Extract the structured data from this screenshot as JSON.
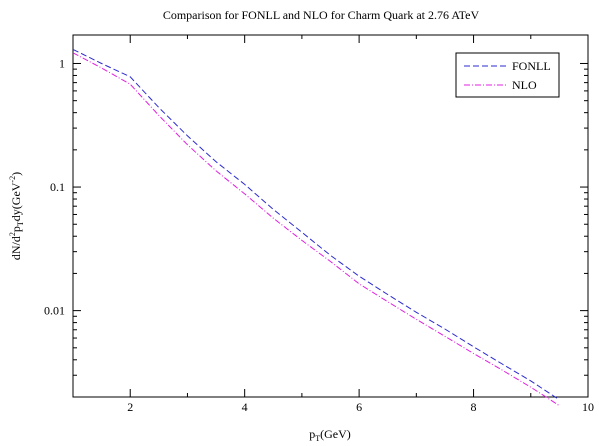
{
  "chart_data": {
    "type": "line",
    "title": "Comparison for FONLL and NLO for Charm Quark at 2.76 ATeV",
    "xlabel": {
      "main": "p",
      "sub": "T",
      "rest": "(GeV)"
    },
    "ylabel": {
      "main": "dN/d",
      "sup1": "2",
      "mid1": "p",
      "sub1": "T",
      "mid2": "dy(GeV",
      "sup2": "-2",
      "end": ")"
    },
    "xlim": [
      1,
      10
    ],
    "ylim": [
      0.002,
      1.7
    ],
    "yscale": "log",
    "xticks": [
      2,
      4,
      6,
      8,
      10
    ],
    "xtick_labels": [
      "2",
      "4",
      "6",
      "8",
      "10"
    ],
    "yticks": [
      0.01,
      0.1,
      1
    ],
    "ytick_labels": [
      "0.01",
      "0.1",
      "1"
    ],
    "grid": false,
    "legend": "top-right",
    "series": [
      {
        "name": "FONLL",
        "color": "#2b2bd0",
        "dash": "dashed",
        "x": [
          1.0,
          1.5,
          2.0,
          2.5,
          3.0,
          3.5,
          4.0,
          4.5,
          5.0,
          5.5,
          6.0,
          6.5,
          7.0,
          7.5,
          8.0,
          8.5,
          9.0,
          9.5
        ],
        "y": [
          1.3,
          1.0,
          0.78,
          0.44,
          0.26,
          0.16,
          0.105,
          0.066,
          0.043,
          0.028,
          0.019,
          0.0135,
          0.0097,
          0.0071,
          0.0051,
          0.0037,
          0.0027,
          0.0019
        ]
      },
      {
        "name": "NLO",
        "color": "#e020e0",
        "dash": "dash-dot",
        "x": [
          1.0,
          1.5,
          2.0,
          2.5,
          3.0,
          3.5,
          4.0,
          4.5,
          5.0,
          5.5,
          6.0,
          6.5,
          7.0,
          7.5,
          8.0,
          8.5,
          9.0,
          9.5
        ],
        "y": [
          1.22,
          0.92,
          0.68,
          0.38,
          0.22,
          0.135,
          0.088,
          0.056,
          0.037,
          0.025,
          0.0165,
          0.0118,
          0.0085,
          0.0062,
          0.0045,
          0.0033,
          0.0024,
          0.0017
        ]
      }
    ]
  }
}
